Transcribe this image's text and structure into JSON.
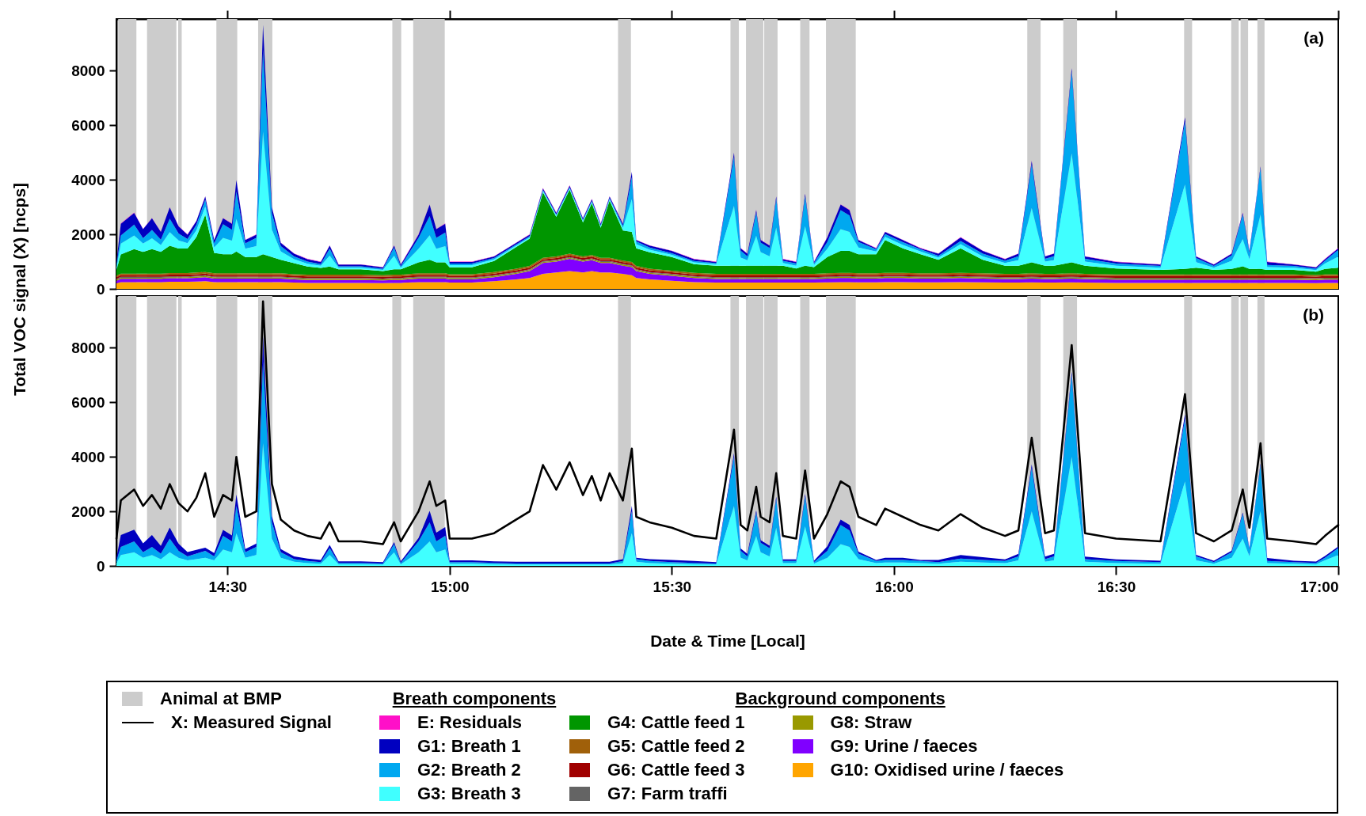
{
  "chart_data": [
    {
      "type": "area",
      "stacked": true,
      "x": [
        14.25,
        14.26,
        14.29,
        14.31,
        14.33,
        14.35,
        14.37,
        14.39,
        14.41,
        14.43,
        14.45,
        14.47,
        14.49,
        14.51,
        14.52,
        14.54,
        14.565,
        14.58,
        14.6,
        14.62,
        14.65,
        14.68,
        14.71,
        14.73,
        14.75,
        14.8,
        14.85,
        14.875,
        14.89,
        14.93,
        14.955,
        14.97,
        14.99,
        15,
        15.05,
        15.1,
        15.15,
        15.18,
        15.21,
        15.24,
        15.27,
        15.3,
        15.32,
        15.34,
        15.36,
        15.39,
        15.41,
        15.42,
        15.45,
        15.5,
        15.55,
        15.6,
        15.64,
        15.655,
        15.67,
        15.69,
        15.7,
        15.72,
        15.735,
        15.75,
        15.78,
        15.8,
        15.82,
        15.85,
        15.88,
        15.9,
        15.92,
        15.96,
        15.98,
        16.02,
        16.06,
        16.1,
        16.15,
        16.2,
        16.25,
        16.28,
        16.31,
        16.34,
        16.36,
        16.4,
        16.43,
        16.5,
        16.6,
        16.655,
        16.68,
        16.72,
        16.76,
        16.785,
        16.8,
        16.825,
        16.84,
        16.9,
        16.95,
        16.97,
        17
      ],
      "series": [
        {
          "name": "G10: Oxidised urine / faeces",
          "color": "#ffa500",
          "values": [
            200,
            250,
            250,
            250,
            250,
            250,
            260,
            260,
            260,
            270,
            280,
            250,
            250,
            250,
            250,
            250,
            250,
            250,
            250,
            250,
            230,
            220,
            220,
            220,
            220,
            220,
            210,
            220,
            220,
            250,
            250,
            250,
            250,
            230,
            230,
            280,
            350,
            400,
            550,
            600,
            650,
            600,
            650,
            600,
            600,
            550,
            500,
            400,
            350,
            300,
            250,
            230,
            230,
            230,
            230,
            230,
            230,
            230,
            230,
            230,
            230,
            230,
            230,
            240,
            250,
            250,
            240,
            240,
            250,
            250,
            240,
            240,
            250,
            240,
            230,
            230,
            240,
            230,
            230,
            240,
            230,
            220,
            220,
            220,
            220,
            220,
            220,
            220,
            220,
            220,
            220,
            220,
            210,
            220,
            220
          ]
        },
        {
          "name": "G9: Urine / faeces",
          "color": "#8000ff",
          "values": [
            100,
            120,
            120,
            120,
            120,
            120,
            130,
            130,
            130,
            140,
            150,
            130,
            130,
            130,
            130,
            130,
            130,
            130,
            130,
            130,
            120,
            110,
            110,
            110,
            110,
            110,
            100,
            110,
            110,
            130,
            130,
            130,
            130,
            120,
            120,
            150,
            200,
            250,
            400,
            400,
            450,
            400,
            400,
            350,
            350,
            300,
            300,
            250,
            200,
            180,
            150,
            130,
            130,
            130,
            130,
            130,
            130,
            130,
            130,
            130,
            130,
            130,
            130,
            140,
            150,
            150,
            140,
            140,
            150,
            150,
            140,
            140,
            150,
            140,
            130,
            130,
            140,
            130,
            130,
            140,
            130,
            120,
            120,
            120,
            120,
            120,
            120,
            120,
            120,
            120,
            120,
            120,
            110,
            120,
            120
          ]
        },
        {
          "name": "G8: Straw",
          "color": "#999900",
          "values": [
            40,
            40,
            40,
            40,
            40,
            40,
            40,
            40,
            40,
            40,
            40,
            40,
            40,
            40,
            40,
            40,
            40,
            40,
            40,
            40,
            40,
            40,
            40,
            40,
            40,
            40,
            40,
            40,
            40,
            40,
            40,
            40,
            40,
            40,
            40,
            40,
            40,
            40,
            40,
            40,
            40,
            40,
            40,
            40,
            40,
            40,
            40,
            40,
            40,
            40,
            40,
            40,
            40,
            40,
            40,
            40,
            40,
            40,
            40,
            40,
            40,
            40,
            40,
            40,
            40,
            40,
            40,
            40,
            40,
            40,
            40,
            40,
            40,
            40,
            40,
            40,
            40,
            40,
            40,
            40,
            40,
            40,
            40,
            40,
            40,
            40,
            40,
            40,
            40,
            40,
            40,
            40,
            40,
            40,
            40
          ]
        },
        {
          "name": "G7: Farm traffi",
          "color": "#646464",
          "values": [
            30,
            30,
            30,
            30,
            30,
            30,
            30,
            30,
            30,
            30,
            30,
            30,
            30,
            30,
            30,
            30,
            30,
            30,
            30,
            30,
            30,
            30,
            30,
            30,
            30,
            30,
            30,
            30,
            30,
            30,
            30,
            30,
            30,
            30,
            30,
            30,
            30,
            30,
            30,
            30,
            30,
            30,
            30,
            30,
            30,
            30,
            30,
            30,
            30,
            30,
            30,
            30,
            30,
            30,
            30,
            30,
            30,
            30,
            30,
            30,
            30,
            30,
            30,
            30,
            30,
            30,
            30,
            30,
            30,
            30,
            30,
            30,
            30,
            30,
            30,
            30,
            30,
            30,
            30,
            30,
            30,
            30,
            30,
            30,
            30,
            30,
            30,
            30,
            30,
            30,
            30,
            30,
            30,
            30,
            30
          ]
        },
        {
          "name": "G6: Cattle feed 3",
          "color": "#a00000",
          "values": [
            60,
            60,
            60,
            60,
            60,
            60,
            60,
            60,
            60,
            60,
            60,
            60,
            60,
            60,
            60,
            60,
            60,
            60,
            60,
            60,
            60,
            60,
            60,
            60,
            60,
            60,
            60,
            60,
            60,
            60,
            60,
            60,
            60,
            60,
            60,
            60,
            60,
            60,
            60,
            60,
            60,
            60,
            60,
            60,
            60,
            60,
            60,
            60,
            60,
            60,
            60,
            60,
            60,
            60,
            60,
            60,
            60,
            60,
            60,
            60,
            60,
            60,
            60,
            60,
            60,
            60,
            60,
            60,
            60,
            60,
            60,
            60,
            60,
            60,
            60,
            60,
            60,
            60,
            60,
            60,
            60,
            60,
            60,
            60,
            60,
            60,
            60,
            60,
            60,
            60,
            60,
            60,
            60,
            60,
            60
          ]
        },
        {
          "name": "G5: Cattle feed 2",
          "color": "#a0600a",
          "values": [
            60,
            60,
            60,
            60,
            60,
            60,
            60,
            60,
            60,
            60,
            60,
            60,
            60,
            60,
            60,
            60,
            60,
            60,
            60,
            60,
            60,
            60,
            60,
            60,
            60,
            60,
            60,
            60,
            60,
            60,
            60,
            60,
            60,
            60,
            60,
            60,
            60,
            60,
            60,
            60,
            60,
            60,
            60,
            60,
            60,
            60,
            60,
            60,
            60,
            60,
            60,
            60,
            60,
            60,
            60,
            60,
            60,
            60,
            60,
            60,
            60,
            60,
            60,
            60,
            60,
            60,
            60,
            60,
            60,
            60,
            60,
            60,
            60,
            60,
            60,
            60,
            60,
            60,
            60,
            60,
            60,
            60,
            60,
            60,
            60,
            60,
            60,
            60,
            60,
            60,
            60,
            60,
            60,
            60,
            60
          ]
        },
        {
          "name": "G4: Cattle feed 1",
          "color": "#009600",
          "values": [
            200,
            700,
            900,
            800,
            900,
            800,
            1000,
            900,
            900,
            1300,
            2100,
            750,
            700,
            700,
            800,
            600,
            600,
            700,
            600,
            500,
            400,
            300,
            250,
            300,
            200,
            200,
            150,
            200,
            200,
            400,
            500,
            400,
            400,
            250,
            250,
            400,
            800,
            1000,
            2400,
            1450,
            2350,
            1250,
            1900,
            1100,
            2100,
            1100,
            1100,
            650,
            600,
            500,
            320,
            300,
            300,
            300,
            300,
            300,
            300,
            300,
            300,
            300,
            200,
            300,
            250,
            600,
            800,
            800,
            700,
            700,
            1200,
            900,
            700,
            500,
            900,
            500,
            300,
            300,
            400,
            300,
            300,
            400,
            300,
            220,
            170,
            200,
            250,
            170,
            200,
            300,
            200,
            200,
            170,
            170,
            120,
            200,
            250
          ]
        },
        {
          "name": "G3: Breath 3",
          "color": "#40ffff",
          "values": [
            100,
            400,
            500,
            300,
            400,
            250,
            500,
            300,
            200,
            250,
            300,
            200,
            600,
            500,
            1200,
            300,
            400,
            4500,
            1000,
            300,
            150,
            100,
            80,
            400,
            60,
            60,
            50,
            500,
            60,
            500,
            900,
            500,
            600,
            80,
            80,
            60,
            50,
            50,
            50,
            50,
            50,
            50,
            50,
            50,
            50,
            100,
            1200,
            150,
            100,
            80,
            60,
            50,
            2200,
            300,
            200,
            1100,
            500,
            350,
            1400,
            100,
            100,
            1450,
            80,
            300,
            800,
            700,
            250,
            100,
            120,
            120,
            100,
            80,
            150,
            120,
            100,
            200,
            2000,
            150,
            200,
            4000,
            150,
            100,
            80,
            3100,
            200,
            80,
            300,
            1000,
            350,
            2000,
            100,
            80,
            60,
            200,
            400
          ]
        },
        {
          "name": "G2: Breath 2",
          "color": "#00a8f0",
          "values": [
            100,
            300,
            400,
            200,
            300,
            200,
            500,
            250,
            150,
            200,
            250,
            150,
            500,
            400,
            1000,
            200,
            300,
            3000,
            600,
            200,
            100,
            80,
            60,
            250,
            50,
            50,
            40,
            300,
            50,
            400,
            700,
            400,
            500,
            60,
            60,
            50,
            40,
            40,
            40,
            40,
            40,
            40,
            40,
            40,
            40,
            80,
            800,
            100,
            80,
            60,
            50,
            40,
            1800,
            250,
            150,
            850,
            350,
            300,
            1050,
            80,
            80,
            1100,
            60,
            250,
            700,
            600,
            200,
            80,
            100,
            100,
            80,
            60,
            120,
            100,
            80,
            150,
            1600,
            100,
            150,
            3000,
            100,
            80,
            60,
            2300,
            150,
            60,
            200,
            900,
            250,
            1700,
            80,
            60,
            50,
            100,
            250
          ]
        },
        {
          "name": "G1: Breath 1",
          "color": "#0000c0",
          "values": [
            100,
            430,
            430,
            330,
            430,
            280,
            410,
            260,
            160,
            140,
            120,
            120,
            220,
            220,
            420,
            120,
            120,
            920,
            220,
            120,
            100,
            90,
            80,
            120,
            60,
            60,
            50,
            70,
            60,
            120,
            420,
            320,
            320,
            60,
            60,
            60,
            60,
            60,
            60,
            60,
            60,
            60,
            60,
            60,
            60,
            70,
            200,
            50,
            70,
            80,
            70,
            50,
            140,
            90,
            90,
            90,
            90,
            90,
            90,
            60,
            60,
            90,
            50,
            170,
            200,
            200,
            70,
            40,
            80,
            80,
            40,
            80,
            130,
            100,
            60,
            90,
            120,
            90,
            90,
            120,
            90,
            60,
            50,
            160,
            60,
            50,
            60,
            60,
            60,
            60,
            110,
            50,
            50,
            60,
            60
          ]
        },
        {
          "name": "E: Residuals",
          "color": "#ff10c8",
          "values": [
            10,
            10,
            10,
            10,
            10,
            10,
            10,
            10,
            10,
            10,
            10,
            10,
            10,
            10,
            10,
            10,
            10,
            10,
            10,
            10,
            10,
            10,
            10,
            10,
            10,
            10,
            10,
            10,
            10,
            10,
            10,
            10,
            10,
            10,
            10,
            10,
            10,
            10,
            10,
            10,
            10,
            10,
            10,
            10,
            10,
            10,
            10,
            10,
            10,
            10,
            10,
            10,
            10,
            10,
            10,
            10,
            10,
            10,
            10,
            10,
            10,
            10,
            10,
            10,
            10,
            10,
            10,
            10,
            10,
            10,
            10,
            10,
            10,
            10,
            10,
            10,
            10,
            10,
            10,
            10,
            10,
            10,
            10,
            10,
            10,
            10,
            10,
            10,
            10,
            10,
            10,
            10,
            10,
            10,
            10
          ]
        }
      ],
      "xlim": [
        14.25,
        17
      ],
      "xticks": [
        14.5,
        15,
        15.5,
        16,
        16.5,
        17
      ],
      "tick_labels": "y",
      "ylim": [
        0,
        9900
      ],
      "yticks": [
        0,
        2000,
        4000,
        6000,
        8000
      ],
      "ylabel": "Total VOC signal (X) [ncps]",
      "bands": [
        {
          "axis": "x",
          "from": 14.254,
          "to": 14.295,
          "label": "Animal at BMP",
          "color": "#cccccc"
        },
        {
          "axis": "x",
          "from": 14.319,
          "to": 14.385,
          "color": "#cccccc"
        },
        {
          "axis": "x",
          "from": 14.389,
          "to": 14.397,
          "color": "#cccccc"
        },
        {
          "axis": "x",
          "from": 14.475,
          "to": 14.522,
          "color": "#cccccc"
        },
        {
          "axis": "x",
          "from": 14.569,
          "to": 14.601,
          "color": "#cccccc"
        },
        {
          "axis": "x",
          "from": 14.871,
          "to": 14.891,
          "color": "#cccccc"
        },
        {
          "axis": "x",
          "from": 14.918,
          "to": 14.989,
          "color": "#cccccc"
        },
        {
          "axis": "x",
          "from": 15.379,
          "to": 15.408,
          "color": "#cccccc"
        },
        {
          "axis": "x",
          "from": 15.632,
          "to": 15.651,
          "color": "#cccccc"
        },
        {
          "axis": "x",
          "from": 15.667,
          "to": 15.706,
          "color": "#cccccc"
        },
        {
          "axis": "x",
          "from": 15.708,
          "to": 15.738,
          "color": "#cccccc"
        },
        {
          "axis": "x",
          "from": 15.789,
          "to": 15.81,
          "color": "#cccccc"
        },
        {
          "axis": "x",
          "from": 15.847,
          "to": 15.914,
          "color": "#cccccc"
        },
        {
          "axis": "x",
          "from": 16.3,
          "to": 16.33,
          "color": "#cccccc"
        },
        {
          "axis": "x",
          "from": 16.381,
          "to": 16.412,
          "color": "#cccccc"
        },
        {
          "axis": "x",
          "from": 16.653,
          "to": 16.671,
          "color": "#cccccc"
        },
        {
          "axis": "x",
          "from": 16.759,
          "to": 16.776,
          "color": "#cccccc"
        },
        {
          "axis": "x",
          "from": 16.78,
          "to": 16.797,
          "color": "#cccccc"
        },
        {
          "axis": "x",
          "from": 16.818,
          "to": 16.834,
          "color": "#cccccc"
        }
      ],
      "annotations": [
        "(a)",
        "Breath components",
        "Background components"
      ],
      "legend": "bottom"
    },
    {
      "type": "area",
      "stacked": true,
      "x": [
        14.25,
        14.26,
        14.29,
        14.31,
        14.33,
        14.35,
        14.37,
        14.39,
        14.41,
        14.43,
        14.45,
        14.47,
        14.49,
        14.51,
        14.52,
        14.54,
        14.565,
        14.58,
        14.6,
        14.62,
        14.65,
        14.68,
        14.71,
        14.73,
        14.75,
        14.8,
        14.85,
        14.875,
        14.89,
        14.93,
        14.955,
        14.97,
        14.99,
        15,
        15.05,
        15.1,
        15.15,
        15.18,
        15.21,
        15.24,
        15.27,
        15.3,
        15.32,
        15.34,
        15.36,
        15.39,
        15.41,
        15.42,
        15.45,
        15.5,
        15.55,
        15.6,
        15.64,
        15.655,
        15.67,
        15.69,
        15.7,
        15.72,
        15.735,
        15.75,
        15.78,
        15.8,
        15.82,
        15.85,
        15.88,
        15.9,
        15.92,
        15.96,
        15.98,
        16.02,
        16.06,
        16.1,
        16.15,
        16.2,
        16.25,
        16.28,
        16.31,
        16.34,
        16.36,
        16.4,
        16.43,
        16.5,
        16.6,
        16.655,
        16.68,
        16.72,
        16.76,
        16.785,
        16.8,
        16.825,
        16.84,
        16.9,
        16.95,
        16.97,
        17
      ],
      "series": [
        {
          "color": "#40ffff",
          "values": [
            100,
            400,
            500,
            300,
            400,
            250,
            500,
            300,
            200,
            250,
            300,
            200,
            600,
            500,
            1200,
            300,
            400,
            4500,
            1000,
            300,
            150,
            100,
            80,
            400,
            60,
            60,
            50,
            500,
            60,
            500,
            900,
            500,
            600,
            80,
            80,
            60,
            50,
            50,
            50,
            50,
            50,
            50,
            50,
            50,
            50,
            100,
            1200,
            150,
            100,
            80,
            60,
            50,
            2200,
            300,
            200,
            1100,
            500,
            350,
            1400,
            100,
            100,
            1450,
            80,
            300,
            800,
            700,
            250,
            100,
            120,
            120,
            100,
            80,
            150,
            120,
            100,
            200,
            2000,
            150,
            200,
            4000,
            150,
            100,
            80,
            3100,
            200,
            80,
            300,
            1000,
            350,
            2000,
            100,
            80,
            60,
            200,
            400
          ]
        },
        {
          "color": "#00a8f0",
          "values": [
            100,
            300,
            400,
            200,
            300,
            200,
            500,
            250,
            150,
            200,
            250,
            150,
            500,
            400,
            1000,
            200,
            300,
            3000,
            600,
            200,
            100,
            80,
            60,
            250,
            50,
            50,
            40,
            300,
            50,
            400,
            700,
            400,
            500,
            60,
            60,
            50,
            40,
            40,
            40,
            40,
            40,
            40,
            40,
            40,
            40,
            80,
            800,
            100,
            80,
            60,
            50,
            40,
            1800,
            250,
            150,
            850,
            350,
            300,
            1050,
            80,
            80,
            1100,
            60,
            250,
            700,
            600,
            200,
            80,
            100,
            100,
            80,
            60,
            120,
            100,
            80,
            150,
            1600,
            100,
            150,
            3000,
            100,
            80,
            60,
            2300,
            150,
            60,
            200,
            900,
            250,
            1700,
            80,
            60,
            50,
            100,
            250
          ]
        },
        {
          "color": "#0000c0",
          "values": [
            100,
            430,
            430,
            330,
            430,
            280,
            410,
            260,
            160,
            140,
            120,
            120,
            220,
            220,
            420,
            120,
            120,
            920,
            220,
            120,
            100,
            90,
            80,
            120,
            60,
            60,
            50,
            70,
            60,
            120,
            420,
            320,
            320,
            60,
            60,
            60,
            60,
            60,
            60,
            60,
            60,
            60,
            60,
            60,
            60,
            70,
            200,
            50,
            70,
            80,
            70,
            50,
            140,
            90,
            90,
            90,
            90,
            90,
            90,
            60,
            60,
            90,
            50,
            170,
            200,
            200,
            70,
            40,
            80,
            80,
            40,
            80,
            130,
            100,
            60,
            90,
            120,
            90,
            90,
            120,
            90,
            60,
            50,
            160,
            60,
            50,
            60,
            60,
            60,
            60,
            110,
            50,
            50,
            60,
            60
          ]
        },
        {
          "type": "line",
          "name": "X: Measured Signal",
          "color": "#000000",
          "values": [
            1000,
            2400,
            2800,
            2200,
            2600,
            2100,
            3000,
            2300,
            2000,
            2500,
            3400,
            1800,
            2600,
            2400,
            4000,
            1800,
            2000,
            9700,
            3000,
            1700,
            1300,
            1100,
            1000,
            1600,
            900,
            900,
            800,
            1600,
            900,
            2000,
            3100,
            2200,
            2400,
            1000,
            1000,
            1200,
            1700,
            2000,
            3700,
            2800,
            3800,
            2600,
            3300,
            2400,
            3400,
            2400,
            4300,
            1800,
            1600,
            1400,
            1100,
            1000,
            5000,
            1500,
            1300,
            2900,
            1800,
            1600,
            3400,
            1100,
            1000,
            3500,
            1000,
            1900,
            3100,
            2900,
            1800,
            1500,
            2100,
            1800,
            1500,
            1300,
            1900,
            1400,
            1100,
            1300,
            4700,
            1200,
            1300,
            8100,
            1200,
            1000,
            900,
            6300,
            1200,
            900,
            1300,
            2800,
            1400,
            4500,
            1000,
            900,
            800,
            1100,
            1500
          ]
        }
      ],
      "xlim": [
        14.25,
        17
      ],
      "xticks": [
        {
          "value": 14.5,
          "label": "14:30"
        },
        {
          "value": 15,
          "label": "15:00"
        },
        {
          "value": 15.5,
          "label": "15:30"
        },
        {
          "value": 16,
          "label": "16:00"
        },
        {
          "value": 16.5,
          "label": "16:30"
        },
        {
          "value": 17,
          "label": "17:00"
        }
      ],
      "ylim": [
        0,
        9900
      ],
      "yticks": [
        0,
        2000,
        4000,
        6000,
        8000
      ],
      "xlabel": "Date & Time [Local]",
      "bands": [
        {
          "axis": "x",
          "from": 14.254,
          "to": 14.295,
          "color": "#cccccc"
        },
        {
          "axis": "x",
          "from": 14.319,
          "to": 14.385,
          "color": "#cccccc"
        },
        {
          "axis": "x",
          "from": 14.389,
          "to": 14.397,
          "color": "#cccccc"
        },
        {
          "axis": "x",
          "from": 14.475,
          "to": 14.522,
          "color": "#cccccc"
        },
        {
          "axis": "x",
          "from": 14.569,
          "to": 14.601,
          "color": "#cccccc"
        },
        {
          "axis": "x",
          "from": 14.871,
          "to": 14.891,
          "color": "#cccccc"
        },
        {
          "axis": "x",
          "from": 14.918,
          "to": 14.989,
          "color": "#cccccc"
        },
        {
          "axis": "x",
          "from": 15.379,
          "to": 15.408,
          "color": "#cccccc"
        },
        {
          "axis": "x",
          "from": 15.632,
          "to": 15.651,
          "color": "#cccccc"
        },
        {
          "axis": "x",
          "from": 15.667,
          "to": 15.706,
          "color": "#cccccc"
        },
        {
          "axis": "x",
          "from": 15.708,
          "to": 15.738,
          "color": "#cccccc"
        },
        {
          "axis": "x",
          "from": 15.789,
          "to": 15.81,
          "color": "#cccccc"
        },
        {
          "axis": "x",
          "from": 15.847,
          "to": 15.914,
          "color": "#cccccc"
        },
        {
          "axis": "x",
          "from": 16.3,
          "to": 16.33,
          "color": "#cccccc"
        },
        {
          "axis": "x",
          "from": 16.381,
          "to": 16.412,
          "color": "#cccccc"
        },
        {
          "axis": "x",
          "from": 16.653,
          "to": 16.671,
          "color": "#cccccc"
        },
        {
          "axis": "x",
          "from": 16.759,
          "to": 16.776,
          "color": "#cccccc"
        },
        {
          "axis": "x",
          "from": 16.78,
          "to": 16.797,
          "color": "#cccccc"
        },
        {
          "axis": "x",
          "from": 16.818,
          "to": 16.834,
          "color": "#cccccc"
        }
      ],
      "annotations": [
        "(b)"
      ],
      "legend": "bottom"
    }
  ]
}
